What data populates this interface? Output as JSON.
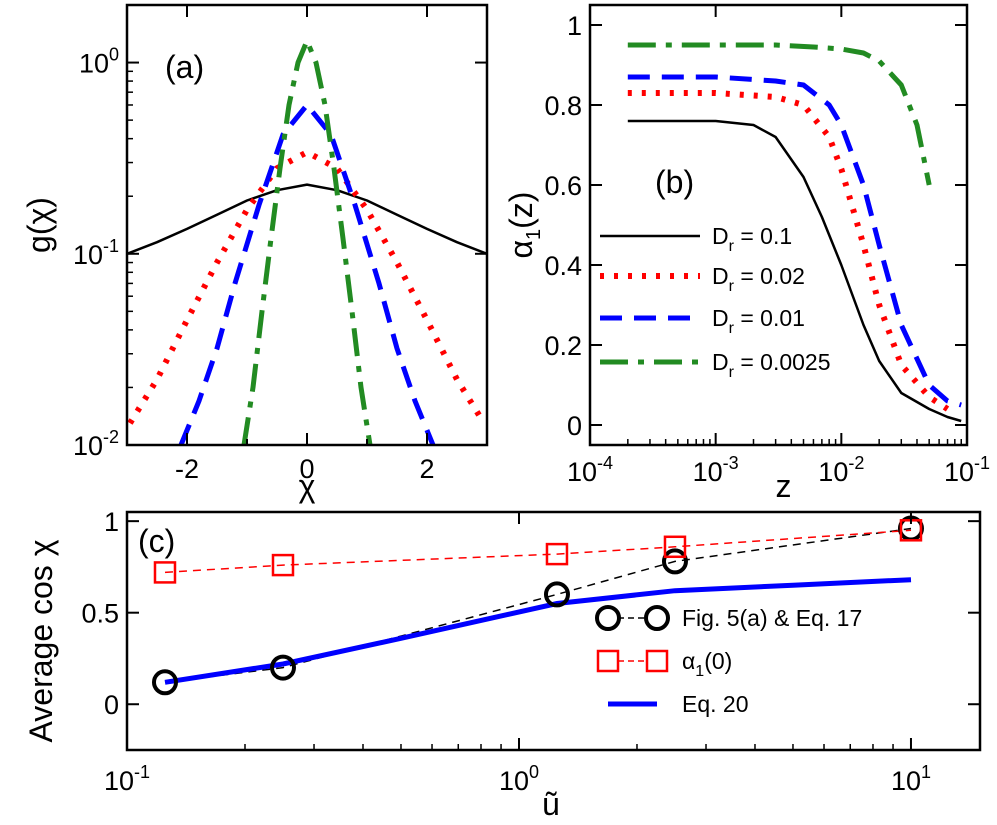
{
  "chart_data": [
    {
      "panel": "a",
      "type": "line",
      "annotation": "(a)",
      "xlabel": "χ",
      "ylabel": "g(χ)",
      "xlim": [
        -3,
        3
      ],
      "ylim": [
        0.01,
        2
      ],
      "yscale": "log",
      "xticks": [
        {
          "v": -2,
          "label": "-2"
        },
        {
          "v": 0,
          "label": "0"
        },
        {
          "v": 2,
          "label": "2"
        }
      ],
      "yticks": [
        {
          "v": 0.01,
          "base": "10",
          "exp": "-2"
        },
        {
          "v": 0.1,
          "base": "10",
          "exp": "-1"
        },
        {
          "v": 1,
          "base": "10",
          "exp": "0"
        }
      ],
      "series": [
        {
          "key": "Dr_0.1",
          "color": "#000000",
          "style": "solid",
          "x": [
            -3,
            -2.5,
            -2,
            -1.5,
            -1,
            -0.5,
            0,
            0.5,
            1,
            1.5,
            2,
            2.5,
            3
          ],
          "y": [
            0.1,
            0.115,
            0.135,
            0.16,
            0.19,
            0.215,
            0.23,
            0.215,
            0.19,
            0.16,
            0.135,
            0.115,
            0.1
          ]
        },
        {
          "key": "Dr_0.02",
          "color": "#ff0000",
          "style": "dotted",
          "x": [
            -2.95,
            -2.5,
            -2,
            -1.5,
            -1,
            -0.5,
            0,
            0.5,
            1,
            1.5,
            2,
            2.5,
            2.95
          ],
          "y": [
            0.013,
            0.022,
            0.045,
            0.09,
            0.17,
            0.28,
            0.34,
            0.28,
            0.17,
            0.09,
            0.045,
            0.022,
            0.013
          ]
        },
        {
          "key": "Dr_0.01",
          "color": "#0000ff",
          "style": "dashed",
          "x": [
            -2.1,
            -1.8,
            -1.5,
            -1.2,
            -0.8,
            -0.4,
            0,
            0.4,
            0.8,
            1.2,
            1.5,
            1.8,
            2.1
          ],
          "y": [
            0.01,
            0.017,
            0.032,
            0.07,
            0.18,
            0.42,
            0.6,
            0.42,
            0.18,
            0.07,
            0.032,
            0.017,
            0.01
          ]
        },
        {
          "key": "Dr_0.0025",
          "color": "#228b22",
          "style": "dashdot",
          "x": [
            -1.05,
            -0.9,
            -0.75,
            -0.6,
            -0.45,
            -0.3,
            -0.15,
            0,
            0.15,
            0.3,
            0.45,
            0.6,
            0.75,
            0.9,
            1.05
          ],
          "y": [
            0.01,
            0.02,
            0.05,
            0.12,
            0.28,
            0.6,
            1.0,
            1.3,
            1.0,
            0.6,
            0.28,
            0.12,
            0.05,
            0.02,
            0.01
          ]
        }
      ]
    },
    {
      "panel": "b",
      "type": "line",
      "annotation": "(b)",
      "xlabel": "z",
      "ylabel_main": "α",
      "ylabel_sub": "1",
      "ylabel_tail": "(z)",
      "xscale": "log",
      "xlim": [
        0.0001,
        0.1
      ],
      "ylim": [
        -0.05,
        1.05
      ],
      "xticks": [
        {
          "v": 0.0001,
          "base": "10",
          "exp": "-4"
        },
        {
          "v": 0.001,
          "base": "10",
          "exp": "-3"
        },
        {
          "v": 0.01,
          "base": "10",
          "exp": "-2"
        },
        {
          "v": 0.1,
          "base": "10",
          "exp": "-1"
        }
      ],
      "yticks": [
        {
          "v": 0,
          "label": "0"
        },
        {
          "v": 0.2,
          "label": "0.2"
        },
        {
          "v": 0.4,
          "label": "0.4"
        },
        {
          "v": 0.6,
          "label": "0.6"
        },
        {
          "v": 0.8,
          "label": "0.8"
        },
        {
          "v": 1,
          "label": "1"
        }
      ],
      "legend_position": "lower-left",
      "series": [
        {
          "key": "Dr_0.1",
          "label_main": "D",
          "label_sub": "r",
          "label_tail": " = 0.1",
          "color": "#000000",
          "style": "solid",
          "x": [
            0.0002,
            0.001,
            0.002,
            0.003,
            0.005,
            0.007,
            0.01,
            0.015,
            0.02,
            0.03,
            0.05,
            0.07,
            0.09
          ],
          "y": [
            0.76,
            0.76,
            0.75,
            0.72,
            0.62,
            0.52,
            0.4,
            0.25,
            0.16,
            0.08,
            0.04,
            0.02,
            0.01
          ]
        },
        {
          "key": "Dr_0.02",
          "label_main": "D",
          "label_sub": "r",
          "label_tail": " = 0.02",
          "color": "#ff0000",
          "style": "dotted",
          "x": [
            0.0002,
            0.001,
            0.003,
            0.005,
            0.008,
            0.01,
            0.015,
            0.02,
            0.03,
            0.05,
            0.07
          ],
          "y": [
            0.83,
            0.83,
            0.82,
            0.8,
            0.72,
            0.64,
            0.45,
            0.3,
            0.15,
            0.07,
            0.04
          ]
        },
        {
          "key": "Dr_0.01",
          "label_main": "D",
          "label_sub": "r",
          "label_tail": " = 0.01",
          "color": "#0000ff",
          "style": "dashed",
          "x": [
            0.0002,
            0.001,
            0.003,
            0.005,
            0.008,
            0.01,
            0.015,
            0.02,
            0.03,
            0.05,
            0.07,
            0.09
          ],
          "y": [
            0.87,
            0.87,
            0.86,
            0.85,
            0.8,
            0.75,
            0.6,
            0.45,
            0.25,
            0.1,
            0.06,
            0.05
          ]
        },
        {
          "key": "Dr_0.0025",
          "label_main": "D",
          "label_sub": "r",
          "label_tail": " = 0.0025",
          "color": "#228b22",
          "style": "dashdot",
          "x": [
            0.0002,
            0.001,
            0.003,
            0.006,
            0.01,
            0.015,
            0.02,
            0.03,
            0.04,
            0.05
          ],
          "y": [
            0.95,
            0.95,
            0.95,
            0.945,
            0.94,
            0.93,
            0.91,
            0.85,
            0.75,
            0.6
          ]
        }
      ]
    },
    {
      "panel": "c",
      "type": "line",
      "annotation": "(c)",
      "xlabel": "ũ",
      "ylabel": "Average cos χ",
      "xscale": "log",
      "xlim": [
        0.1,
        15
      ],
      "ylim": [
        -0.25,
        1.05
      ],
      "xticks": [
        {
          "v": 0.1,
          "base": "10",
          "exp": "-1"
        },
        {
          "v": 1,
          "base": "10",
          "exp": "0"
        },
        {
          "v": 10,
          "base": "10",
          "exp": "1"
        }
      ],
      "yticks": [
        {
          "v": 0,
          "label": "0"
        },
        {
          "v": 0.5,
          "label": "0.5"
        },
        {
          "v": 1,
          "label": "1"
        }
      ],
      "legend_position": "lower-right",
      "series": [
        {
          "key": "fig5a",
          "label": "Fig. 5(a) & Eq. 17",
          "color": "#000000",
          "marker": "circle",
          "x": [
            0.125,
            0.25,
            1.25,
            2.5,
            10
          ],
          "y": [
            0.12,
            0.2,
            0.6,
            0.78,
            0.96
          ]
        },
        {
          "key": "alpha1",
          "label_main": "α",
          "label_sub": "1",
          "label_tail": "(0)",
          "color": "#ff0000",
          "marker": "square",
          "x": [
            0.125,
            0.25,
            1.25,
            2.5,
            10
          ],
          "y": [
            0.72,
            0.76,
            0.82,
            0.86,
            0.95
          ]
        },
        {
          "key": "eq20",
          "label": "Eq. 20",
          "color": "#0000ff",
          "marker": "none",
          "x": [
            0.125,
            0.25,
            0.5,
            1.25,
            2.5,
            5,
            10
          ],
          "y": [
            0.12,
            0.22,
            0.36,
            0.55,
            0.62,
            0.65,
            0.68
          ]
        }
      ]
    }
  ]
}
